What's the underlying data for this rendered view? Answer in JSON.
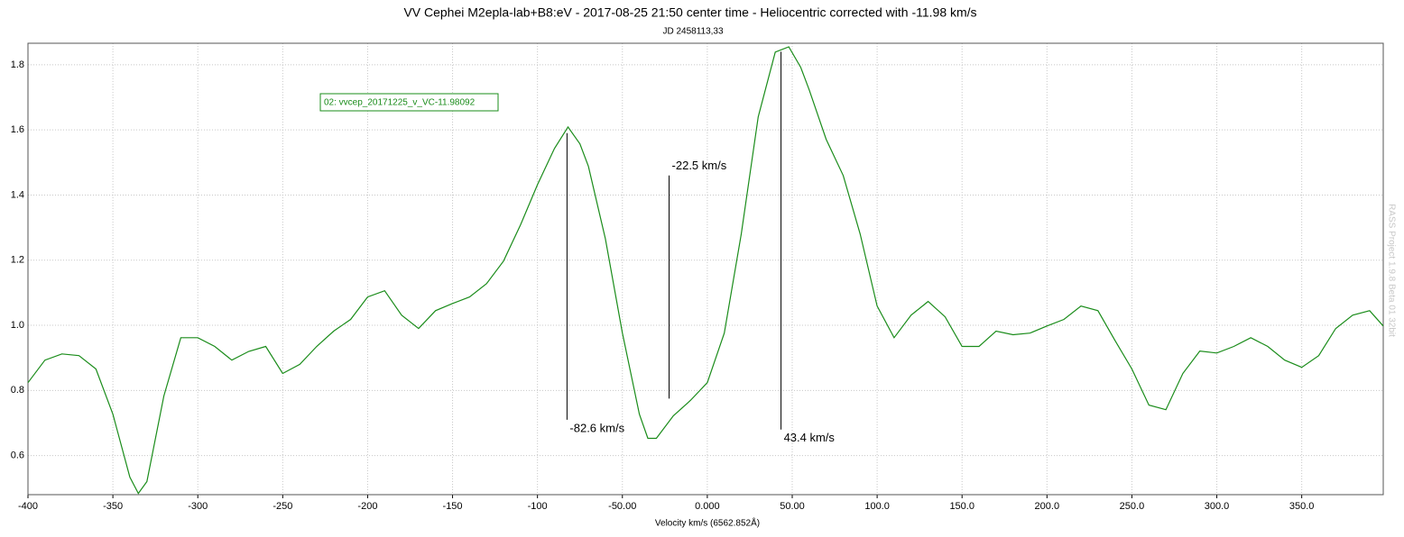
{
  "chart_data": {
    "type": "line",
    "title": "VV Cephei M2epla-lab+B8:eV - 2017-08-25 21:50 center time - Heliocentric corrected with -11.98 km/s",
    "subtitle": "JD 2458113,33",
    "x_label": "Velocity km/s (6562.852Å)",
    "watermark": "RASS Project 1.9.8 Beta 01 32bit",
    "xlim": [
      -400,
      398
    ],
    "ylim": [
      0.48,
      1.866
    ],
    "xticks": [
      -400,
      -350,
      -300,
      -250,
      -200,
      -150,
      -100,
      {
        "value": -50,
        "label": "-50.00"
      },
      {
        "value": 0,
        "label": "0.000"
      },
      {
        "value": 50,
        "label": "50.00"
      },
      {
        "value": 100,
        "label": "100.0"
      },
      {
        "value": 150,
        "label": "150.0"
      },
      {
        "value": 200,
        "label": "200.0"
      },
      {
        "value": 250,
        "label": "250.0"
      },
      {
        "value": 300,
        "label": "300.0"
      },
      {
        "value": 350,
        "label": "350.0"
      }
    ],
    "yticks": [
      0.6,
      0.8,
      {
        "value": 1,
        "label": "1.0"
      },
      1.2,
      1.4,
      1.6,
      1.8
    ],
    "grid": true,
    "x": [
      -400,
      -390,
      -380,
      -370,
      -360,
      -350,
      -340,
      -335,
      -330,
      -320,
      -310,
      -300,
      -290,
      -280,
      -270,
      -260,
      -250,
      -240,
      -230,
      -220,
      -210,
      -200,
      -190,
      -180,
      -170,
      -160,
      -150,
      -140,
      -130,
      -120,
      -110,
      -100,
      -90,
      -82,
      -75,
      -70,
      -60,
      -50,
      -40,
      -35,
      -30,
      -20,
      -10,
      0,
      10,
      20,
      30,
      40,
      48,
      55,
      60,
      70,
      80,
      90,
      100,
      110,
      120,
      130,
      140,
      150,
      160,
      170,
      180,
      190,
      200,
      210,
      220,
      230,
      240,
      250,
      260,
      270,
      280,
      290,
      300,
      310,
      320,
      330,
      340,
      350,
      360,
      370,
      380,
      390,
      398
    ],
    "series": [
      {
        "name": "02: vvcep_20171225_v_VC-11.98092",
        "color": "#1a8c1a",
        "values": [
          0.824,
          0.893,
          0.912,
          0.907,
          0.866,
          0.727,
          0.534,
          0.484,
          0.52,
          0.783,
          0.962,
          0.962,
          0.935,
          0.893,
          0.92,
          0.935,
          0.852,
          0.88,
          0.935,
          0.982,
          1.018,
          1.087,
          1.106,
          1.031,
          0.99,
          1.045,
          1.067,
          1.087,
          1.128,
          1.197,
          1.308,
          1.432,
          1.543,
          1.609,
          1.557,
          1.488,
          1.266,
          0.976,
          0.727,
          0.653,
          0.653,
          0.722,
          0.769,
          0.824,
          0.976,
          1.28,
          1.64,
          1.839,
          1.855,
          1.792,
          1.723,
          1.571,
          1.46,
          1.28,
          1.059,
          0.962,
          1.031,
          1.073,
          1.026,
          0.935,
          0.935,
          0.982,
          0.971,
          0.976,
          0.998,
          1.018,
          1.059,
          1.045,
          0.954,
          0.866,
          0.755,
          0.741,
          0.852,
          0.921,
          0.915,
          0.935,
          0.962,
          0.935,
          0.893,
          0.871,
          0.907,
          0.99,
          1.031,
          1.045,
          0.998
        ]
      }
    ],
    "annotations": [
      {
        "label": "-82.6 km/s",
        "x": -82.6,
        "y1": 1.59,
        "y2": 0.71,
        "label_at": "bottom"
      },
      {
        "label": "-22.5 km/s",
        "x": -22.5,
        "y1": 1.46,
        "y2": 0.775,
        "label_at": "top"
      },
      {
        "label": "43.4 km/s",
        "x": 43.4,
        "y1": 1.84,
        "y2": 0.68,
        "label_at": "bottom"
      }
    ]
  }
}
